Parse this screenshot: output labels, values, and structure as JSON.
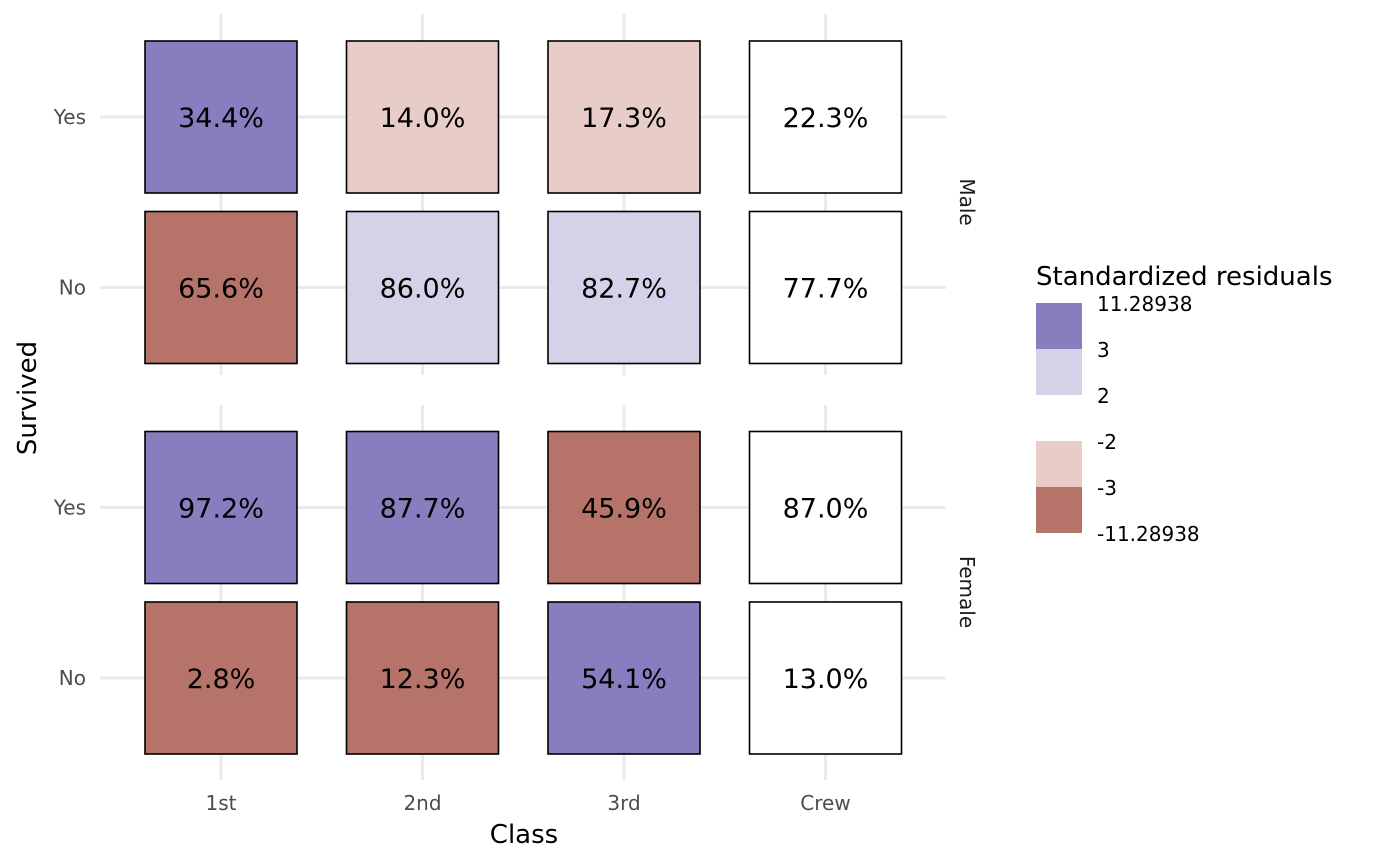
{
  "chart_data": {
    "type": "heatmap",
    "xlabel": "Class",
    "ylabel": "Survived",
    "categories": [
      "1st",
      "2nd",
      "3rd",
      "Crew"
    ],
    "rows": [
      "Yes",
      "No"
    ],
    "facets": [
      {
        "name": "Male",
        "cells": [
          {
            "row": "Yes",
            "col": "1st",
            "label": "34.4%",
            "color": "#877dbf"
          },
          {
            "row": "Yes",
            "col": "2nd",
            "label": "14.0%",
            "color": "#e8ccc8"
          },
          {
            "row": "Yes",
            "col": "3rd",
            "label": "17.3%",
            "color": "#e8ccc8"
          },
          {
            "row": "Yes",
            "col": "Crew",
            "label": "22.3%",
            "color": "#ffffff"
          },
          {
            "row": "No",
            "col": "1st",
            "label": "65.6%",
            "color": "#b5736a"
          },
          {
            "row": "No",
            "col": "2nd",
            "label": "86.0%",
            "color": "#d6d1e8"
          },
          {
            "row": "No",
            "col": "3rd",
            "label": "82.7%",
            "color": "#d6d1e8"
          },
          {
            "row": "No",
            "col": "Crew",
            "label": "77.7%",
            "color": "#ffffff"
          }
        ]
      },
      {
        "name": "Female",
        "cells": [
          {
            "row": "Yes",
            "col": "1st",
            "label": "97.2%",
            "color": "#877dbf"
          },
          {
            "row": "Yes",
            "col": "2nd",
            "label": "87.7%",
            "color": "#877dbf"
          },
          {
            "row": "Yes",
            "col": "3rd",
            "label": "45.9%",
            "color": "#b5736a"
          },
          {
            "row": "Yes",
            "col": "Crew",
            "label": "87.0%",
            "color": "#ffffff"
          },
          {
            "row": "No",
            "col": "1st",
            "label": "2.8%",
            "color": "#b5736a"
          },
          {
            "row": "No",
            "col": "2nd",
            "label": "12.3%",
            "color": "#b5736a"
          },
          {
            "row": "No",
            "col": "3rd",
            "label": "54.1%",
            "color": "#877dbf"
          },
          {
            "row": "No",
            "col": "Crew",
            "label": "13.0%",
            "color": "#ffffff"
          }
        ]
      }
    ],
    "legend": {
      "title": "Standardized residuals",
      "position": "right",
      "breaks": [
        "11.28938",
        "3",
        "2",
        "-2",
        "-3",
        "-11.28938"
      ],
      "bins": [
        {
          "color": "#877dbf"
        },
        {
          "color": "#d6d1e8"
        },
        {
          "color": "#ffffff"
        },
        {
          "color": "#e8ccc8"
        },
        {
          "color": "#b5736a"
        }
      ]
    }
  }
}
